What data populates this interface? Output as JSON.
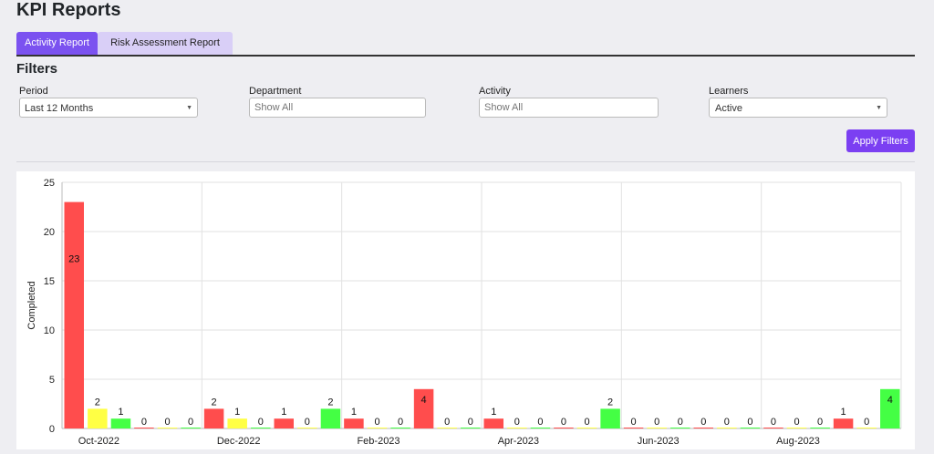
{
  "page_title": "KPI Reports",
  "tabs": [
    {
      "label": "Activity Report",
      "active": true
    },
    {
      "label": "Risk Assessment Report",
      "active": false
    }
  ],
  "filters": {
    "heading": "Filters",
    "period": {
      "label": "Period",
      "value": "Last 12 Months"
    },
    "department": {
      "label": "Department",
      "placeholder": "Show All"
    },
    "activity": {
      "label": "Activity",
      "placeholder": "Show All"
    },
    "learners": {
      "label": "Learners",
      "value": "Active"
    },
    "apply_label": "Apply Filters"
  },
  "colors": {
    "accent": "#7b3ff2",
    "red": "#ff4d4d",
    "yellow": "#ffff44",
    "green": "#44ff44"
  },
  "chart_data": {
    "type": "bar",
    "ylabel": "Completed",
    "ylim": [
      0,
      25
    ],
    "yticks": [
      0,
      5,
      10,
      15,
      20,
      25
    ],
    "grid": true,
    "x_tick_labels": [
      "Oct-2022",
      "Dec-2022",
      "Feb-2023",
      "Apr-2023",
      "Jun-2023",
      "Aug-2023"
    ],
    "groups": [
      {
        "values": [
          23,
          2,
          1
        ],
        "colors": [
          "red",
          "yellow",
          "green"
        ]
      },
      {
        "values": [
          0,
          0,
          0
        ],
        "colors": [
          "red",
          "yellow",
          "green"
        ]
      },
      {
        "values": [
          2,
          1,
          0
        ],
        "colors": [
          "red",
          "yellow",
          "green"
        ]
      },
      {
        "values": [
          1,
          0,
          2
        ],
        "colors": [
          "red",
          "yellow",
          "green"
        ]
      },
      {
        "values": [
          1,
          0,
          0
        ],
        "colors": [
          "red",
          "yellow",
          "green"
        ]
      },
      {
        "values": [
          4,
          0,
          0
        ],
        "colors": [
          "red",
          "yellow",
          "green"
        ]
      },
      {
        "values": [
          1,
          0,
          0
        ],
        "colors": [
          "red",
          "yellow",
          "green"
        ]
      },
      {
        "values": [
          0,
          0,
          2
        ],
        "colors": [
          "red",
          "yellow",
          "green"
        ]
      },
      {
        "values": [
          0,
          0,
          0
        ],
        "colors": [
          "red",
          "yellow",
          "green"
        ]
      },
      {
        "values": [
          0,
          0,
          0
        ],
        "colors": [
          "red",
          "yellow",
          "green"
        ]
      },
      {
        "values": [
          0,
          0,
          0
        ],
        "colors": [
          "red",
          "yellow",
          "green"
        ]
      },
      {
        "values": [
          1,
          0,
          4
        ],
        "colors": [
          "red",
          "yellow",
          "green"
        ]
      }
    ]
  }
}
